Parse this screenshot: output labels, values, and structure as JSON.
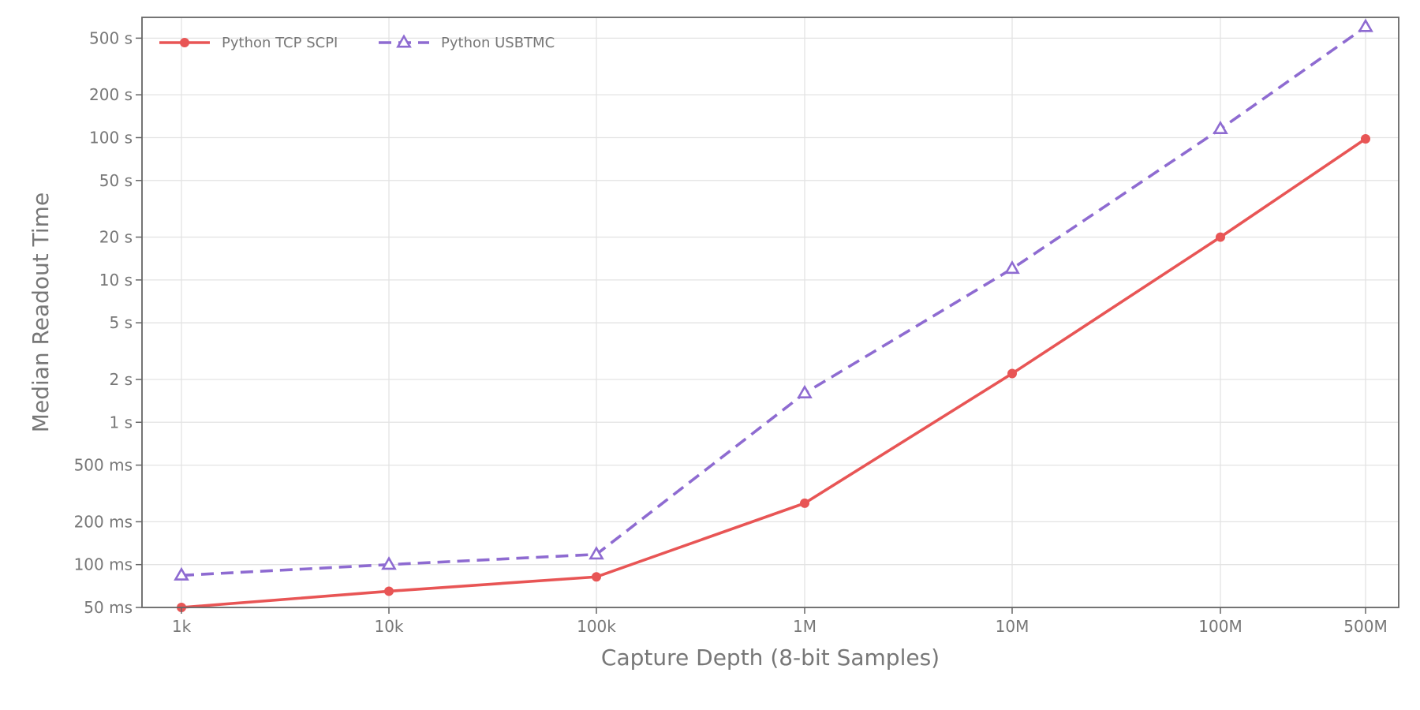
{
  "chart_data": {
    "type": "line",
    "xlabel": "Capture Depth (8-bit Samples)",
    "ylabel": "Median Readout Time",
    "x_scale": "log",
    "y_scale": "log",
    "x": [
      1000,
      10000,
      100000,
      1000000,
      10000000,
      100000000,
      500000000
    ],
    "x_tick_labels": [
      "1k",
      "10k",
      "100k",
      "1M",
      "10M",
      "100M",
      "500M"
    ],
    "y_ticks_seconds": [
      0.05,
      0.1,
      0.2,
      0.5,
      1,
      2,
      5,
      10,
      20,
      50,
      100,
      200,
      500
    ],
    "y_tick_labels": [
      "50 ms",
      "100 ms",
      "200 ms",
      "500 ms",
      "1 s",
      "2 s",
      "5 s",
      "10 s",
      "20 s",
      "50 s",
      "100 s",
      "200 s",
      "500 s"
    ],
    "ylim_seconds": [
      0.05,
      700
    ],
    "grid": true,
    "legend_position": "top-left",
    "series": [
      {
        "name": "Python TCP SCPI",
        "color": "#e85555",
        "line_style": "solid",
        "marker": "circle",
        "values_seconds": [
          0.05,
          0.065,
          0.082,
          0.27,
          2.2,
          20,
          98
        ]
      },
      {
        "name": "Python USBTMC",
        "color": "#8e6bd1",
        "line_style": "dashed",
        "marker": "triangle",
        "values_seconds": [
          0.084,
          0.1,
          0.118,
          1.6,
          12,
          115,
          600
        ]
      }
    ]
  }
}
